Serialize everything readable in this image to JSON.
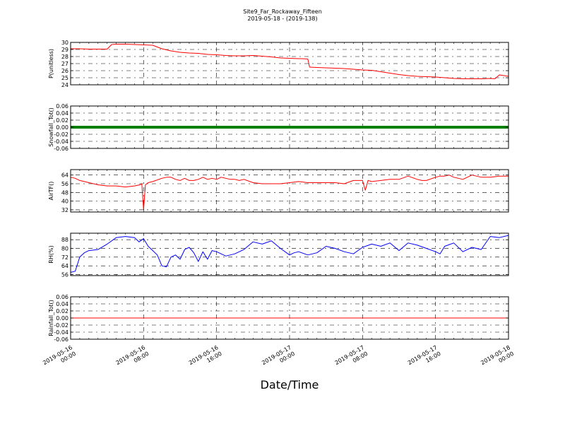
{
  "title": "Site9_Far_Rockaway_Fifteen",
  "subtitle": "2019-05-18 - (2019-138)",
  "xlabel": "Date/Time",
  "x_ticks": [
    {
      "t": 0,
      "line1": "2019-05-16",
      "line2": "00:00"
    },
    {
      "t": 8,
      "line1": "2019-05-16",
      "line2": "08:00"
    },
    {
      "t": 16,
      "line1": "2019-05-16",
      "line2": "16:00"
    },
    {
      "t": 24,
      "line1": "2019-05-17",
      "line2": "00:00"
    },
    {
      "t": 32,
      "line1": "2019-05-17",
      "line2": "08:00"
    },
    {
      "t": 40,
      "line1": "2019-05-17",
      "line2": "16:00"
    },
    {
      "t": 48,
      "line1": "2019-05-18",
      "line2": "00:00"
    }
  ],
  "chart_data": [
    {
      "type": "line",
      "ylabel": "P(unitless)",
      "ylim": [
        24,
        30
      ],
      "yticks": [
        24,
        25,
        26,
        27,
        28,
        29,
        30
      ],
      "grid": true,
      "color": "#ff0000",
      "series": [
        {
          "x": [
            0,
            1,
            2,
            3,
            4,
            4.5,
            5,
            6,
            7,
            8,
            9,
            9.2,
            10,
            11,
            12,
            13,
            14,
            15,
            16,
            17,
            18,
            19,
            20,
            21,
            22,
            23,
            24,
            25,
            25.3,
            26,
            26.2,
            27,
            28,
            29,
            30,
            31,
            32,
            33,
            34,
            35,
            36,
            37,
            38,
            39,
            40,
            41,
            42,
            43,
            44,
            45,
            46,
            46.5,
            47,
            48
          ],
          "y": [
            29.1,
            29.1,
            29.05,
            29.05,
            29.05,
            29.7,
            29.75,
            29.75,
            29.7,
            29.65,
            29.6,
            29.5,
            29.1,
            28.8,
            28.6,
            28.5,
            28.45,
            28.3,
            28.25,
            28.15,
            28.1,
            28.1,
            28.15,
            28.05,
            27.95,
            27.8,
            27.75,
            27.7,
            27.7,
            27.65,
            26.5,
            26.45,
            26.4,
            26.35,
            26.3,
            26.2,
            26.1,
            26.05,
            25.85,
            25.65,
            25.45,
            25.3,
            25.2,
            25.15,
            25.1,
            25.0,
            24.9,
            24.85,
            24.85,
            24.85,
            24.9,
            24.85,
            25.4,
            25.2
          ]
        }
      ]
    },
    {
      "type": "line",
      "ylabel": "Snowfall_Tot()",
      "ylim": [
        -0.06,
        0.06
      ],
      "yticks": [
        -0.06,
        -0.04,
        -0.02,
        0.0,
        0.02,
        0.04,
        0.06
      ],
      "grid": true,
      "color": "#008000",
      "series": [
        {
          "x": [
            0,
            48
          ],
          "y": [
            0,
            0
          ]
        }
      ]
    },
    {
      "type": "line",
      "ylabel": "AirTF()",
      "ylim": [
        30,
        69
      ],
      "yticks": [
        32,
        40,
        48,
        56,
        64
      ],
      "grid": true,
      "color": "#ff0000",
      "series": [
        {
          "x": [
            0,
            0.5,
            1,
            1.5,
            2,
            3,
            4,
            5,
            6,
            7,
            7.6,
            7.8,
            8,
            8.2,
            8.5,
            9,
            10,
            10.5,
            11,
            11.5,
            12,
            12.5,
            13,
            13.5,
            14,
            14.5,
            15,
            15.5,
            16,
            16.5,
            17,
            17.5,
            18,
            18.5,
            19,
            20,
            21,
            22,
            23,
            24,
            25,
            26,
            27,
            28,
            29,
            30,
            31,
            31.5,
            32,
            32.3,
            32.6,
            33,
            34,
            35,
            36,
            37,
            38,
            38.5,
            39,
            40,
            40.5,
            41,
            41.5,
            42,
            43,
            44,
            45,
            46,
            47,
            48
          ],
          "y": [
            62,
            61,
            59,
            58,
            57,
            55,
            54,
            54,
            53,
            54,
            55,
            56,
            32,
            55,
            57,
            58,
            61,
            62,
            62,
            60,
            59,
            61,
            59,
            59,
            60,
            62,
            60,
            61,
            60,
            62,
            61,
            60,
            60,
            59,
            60,
            57,
            56,
            56,
            56,
            57,
            58,
            57,
            57,
            57,
            57,
            56,
            59,
            59,
            59,
            50,
            59,
            58,
            59,
            60,
            60,
            63,
            60,
            59,
            59,
            62,
            63,
            63,
            64,
            62,
            60,
            64,
            62,
            62,
            63,
            63
          ]
        }
      ]
    },
    {
      "type": "line",
      "ylabel": "RH(%)",
      "ylim": [
        55,
        94
      ],
      "yticks": [
        56,
        64,
        72,
        80,
        88
      ],
      "grid": true,
      "color": "#0000ff",
      "series": [
        {
          "x": [
            0,
            0.5,
            1,
            1.5,
            2,
            3,
            4,
            5,
            6,
            7,
            7.5,
            8,
            8.5,
            9,
            9.5,
            10,
            10.5,
            11,
            11.5,
            12,
            12.5,
            13,
            13.5,
            14,
            14.5,
            15,
            15.5,
            16,
            16.5,
            17,
            17.5,
            18,
            19,
            20,
            21,
            22,
            23,
            24,
            24.5,
            25,
            26,
            27,
            28,
            29,
            30,
            31,
            32,
            33,
            34,
            35,
            36,
            37,
            38,
            39,
            40,
            40.5,
            41,
            42,
            43,
            44,
            45,
            46,
            47,
            48
          ],
          "y": [
            58,
            59,
            72,
            76,
            78,
            79,
            84,
            90,
            91,
            90,
            86,
            89,
            82,
            78,
            74,
            64,
            63,
            72,
            74,
            70,
            79,
            81,
            76,
            68,
            77,
            70,
            78,
            77,
            75,
            73,
            74,
            75,
            79,
            86,
            84,
            87,
            80,
            74,
            76,
            77,
            74,
            76,
            82,
            80,
            77,
            75,
            81,
            84,
            82,
            85,
            78,
            85,
            83,
            80,
            77,
            75,
            82,
            85,
            77,
            81,
            79,
            91,
            90,
            92
          ]
        }
      ]
    },
    {
      "type": "line",
      "ylabel": "Rainfall_Tot()",
      "ylim": [
        -0.06,
        0.06
      ],
      "yticks": [
        -0.06,
        -0.04,
        -0.02,
        0.0,
        0.02,
        0.04,
        0.06
      ],
      "grid": true,
      "color": "#ff0000",
      "series": [
        {
          "x": [
            0,
            48
          ],
          "y": [
            0,
            0
          ]
        }
      ]
    }
  ]
}
